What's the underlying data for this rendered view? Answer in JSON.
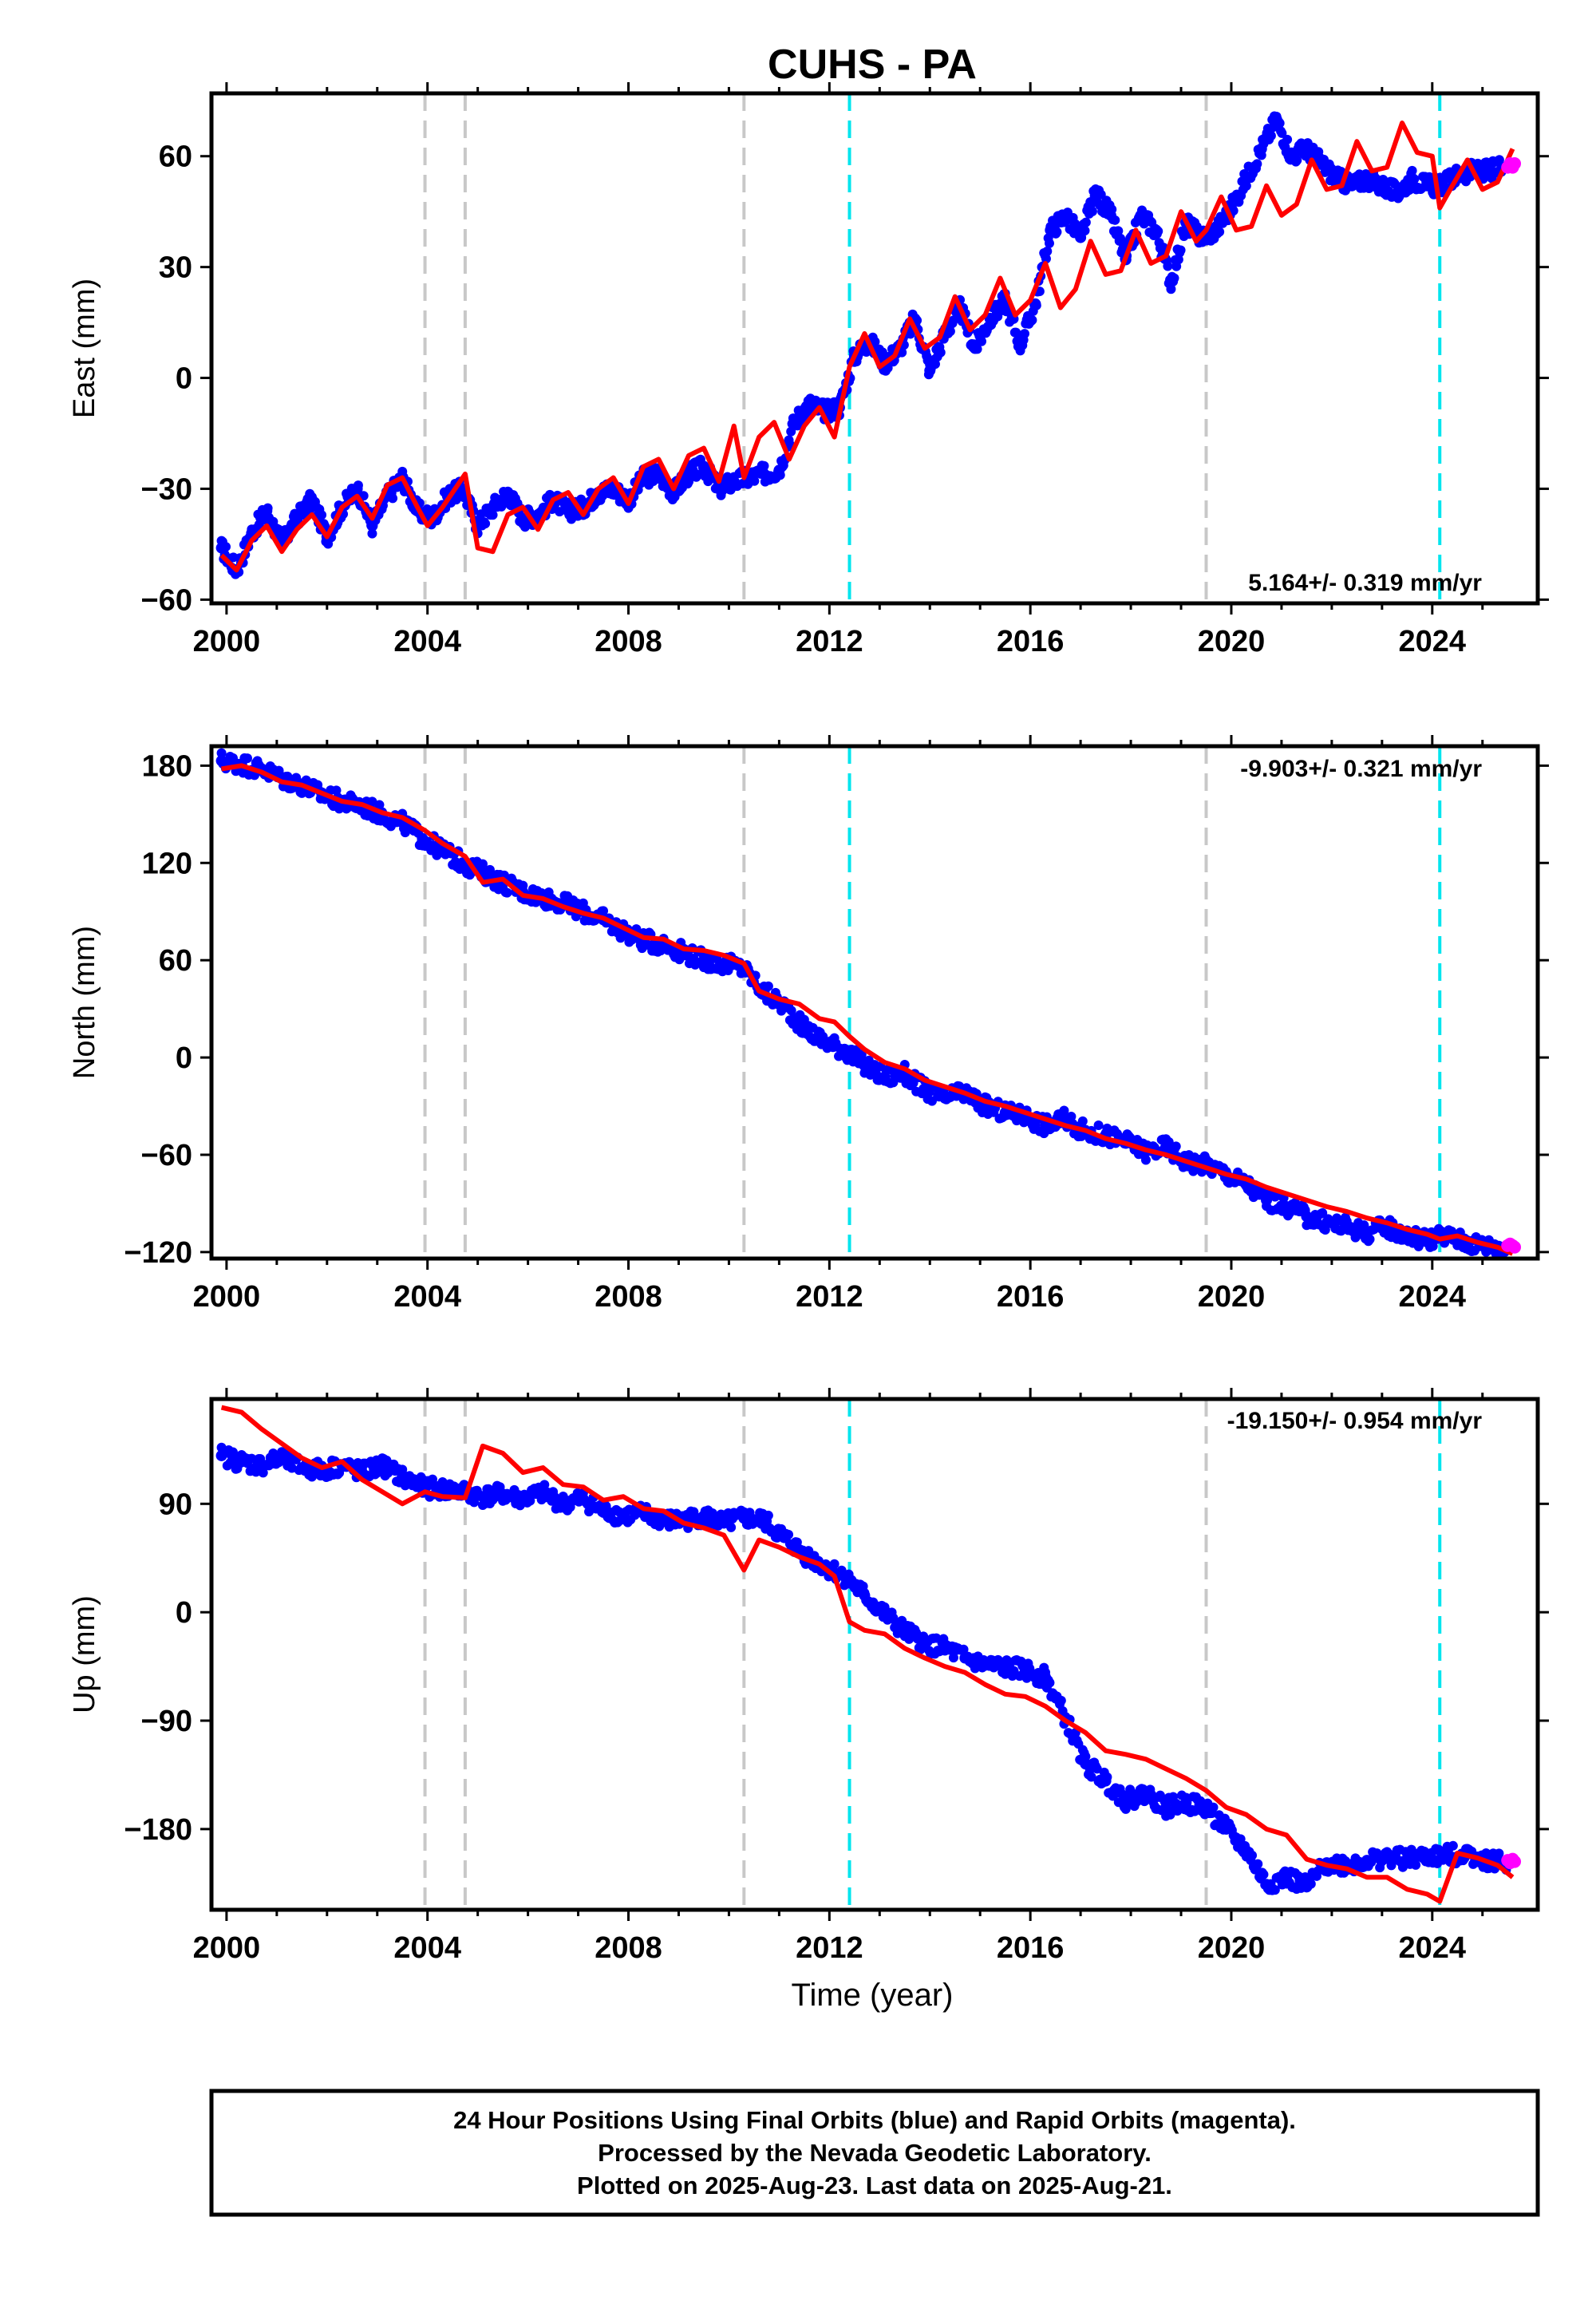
{
  "title": "CUHS - PA",
  "xlabel": "Time (year)",
  "footnote": [
    "24 Hour Positions Using Final Orbits (blue) and Rapid Orbits (magenta).",
    "Processed by the Nevada Geodetic Laboratory.",
    "Plotted on 2025-Aug-23. Last data on 2025-Aug-21."
  ],
  "colors": {
    "final": "#0000ff",
    "rapid": "#ff00ff",
    "model": "#ff0000",
    "equipment_change": "#c8c8c8",
    "event": "#00e5ee"
  },
  "chart_data": [
    {
      "type": "scatter",
      "component": "East",
      "ylabel": "East (mm)",
      "rate": "5.164+/- 0.319 mm/yr",
      "xlim": [
        1999.7,
        2026.1
      ],
      "ylim": [
        -61,
        77
      ],
      "xticks": [
        2000,
        2004,
        2008,
        2012,
        2016,
        2020,
        2024
      ],
      "yticks": [
        -60,
        -30,
        0,
        30,
        60
      ],
      "vlines_gray": [
        2003.95,
        2004.75,
        2010.3,
        2019.5
      ],
      "vlines_cyan": [
        2012.4,
        2024.15
      ],
      "series": [
        {
          "name": "Final Orbits",
          "x": [
            1999.9,
            2000.2,
            2000.5,
            2000.8,
            2001.1,
            2001.4,
            2001.7,
            2002.0,
            2002.3,
            2002.6,
            2002.9,
            2003.2,
            2003.5,
            2003.8,
            2004.1,
            2004.4,
            2004.7,
            2005.0,
            2005.3,
            2005.6,
            2005.9,
            2006.2,
            2006.5,
            2006.8,
            2007.1,
            2007.4,
            2007.7,
            2008.0,
            2008.3,
            2008.6,
            2008.9,
            2009.2,
            2009.5,
            2009.8,
            2010.1,
            2010.4,
            2010.7,
            2011.0,
            2011.3,
            2011.6,
            2011.9,
            2012.2,
            2012.5,
            2012.8,
            2013.1,
            2013.4,
            2013.7,
            2014.0,
            2014.3,
            2014.6,
            2014.9,
            2015.2,
            2015.5,
            2015.8,
            2016.1,
            2016.4,
            2016.7,
            2017.0,
            2017.3,
            2017.6,
            2017.9,
            2018.2,
            2018.5,
            2018.8,
            2019.1,
            2019.4,
            2019.7,
            2020.0,
            2020.3,
            2020.6,
            2020.9,
            2021.2,
            2021.5,
            2021.8,
            2022.1,
            2022.4,
            2022.7,
            2023.0,
            2023.3,
            2023.6,
            2023.9,
            2024.2,
            2024.5,
            2024.8,
            2025.1,
            2025.4
          ],
          "values": [
            -46,
            -52,
            -42,
            -36,
            -45,
            -38,
            -33,
            -43,
            -35,
            -30,
            -40,
            -32,
            -27,
            -36,
            -38,
            -32,
            -30,
            -40,
            -35,
            -31,
            -38,
            -37,
            -33,
            -36,
            -35,
            -31,
            -30,
            -33,
            -27,
            -26,
            -31,
            -26,
            -24,
            -30,
            -28,
            -27,
            -26,
            -25,
            -12,
            -7,
            -9,
            -8,
            6,
            10,
            4,
            8,
            16,
            2,
            12,
            19,
            8,
            16,
            21,
            9,
            20,
            40,
            44,
            38,
            50,
            44,
            32,
            44,
            40,
            26,
            42,
            38,
            40,
            46,
            54,
            62,
            70,
            60,
            62,
            58,
            54,
            52,
            54,
            52,
            50,
            54,
            52,
            52,
            55,
            56,
            56,
            57
          ]
        },
        {
          "name": "Model",
          "x": [
            1999.9,
            2000.2,
            2000.5,
            2000.8,
            2001.1,
            2001.4,
            2001.7,
            2002.0,
            2002.3,
            2002.6,
            2002.9,
            2003.2,
            2003.5,
            2003.8,
            2004.0,
            2004.3,
            2004.5,
            2004.75,
            2005.0,
            2005.3,
            2005.6,
            2005.9,
            2006.2,
            2006.5,
            2006.8,
            2007.1,
            2007.4,
            2007.7,
            2008.0,
            2008.3,
            2008.6,
            2008.9,
            2009.2,
            2009.5,
            2009.8,
            2010.1,
            2010.3,
            2010.6,
            2010.9,
            2011.2,
            2011.5,
            2011.8,
            2012.1,
            2012.4,
            2012.7,
            2013.0,
            2013.3,
            2013.6,
            2013.9,
            2014.2,
            2014.5,
            2014.8,
            2015.1,
            2015.4,
            2015.7,
            2016.0,
            2016.3,
            2016.6,
            2016.9,
            2017.2,
            2017.5,
            2017.8,
            2018.1,
            2018.4,
            2018.7,
            2019.0,
            2019.3,
            2019.5,
            2019.8,
            2020.1,
            2020.4,
            2020.7,
            2021.0,
            2021.3,
            2021.6,
            2021.9,
            2022.2,
            2022.5,
            2022.8,
            2023.1,
            2023.4,
            2023.7,
            2024.0,
            2024.15,
            2024.4,
            2024.7,
            2025.0,
            2025.3,
            2025.6
          ],
          "values": [
            -48,
            -52,
            -44,
            -40,
            -47,
            -41,
            -37,
            -43,
            -35,
            -32,
            -38,
            -29,
            -27,
            -35,
            -40,
            -35,
            -31,
            -26,
            -46,
            -47,
            -37,
            -35,
            -41,
            -33,
            -31,
            -37,
            -30,
            -27,
            -34,
            -24,
            -22,
            -30,
            -21,
            -19,
            -28,
            -13,
            -27,
            -16,
            -12,
            -22,
            -13,
            -8,
            -16,
            3,
            12,
            3,
            6,
            16,
            8,
            11,
            22,
            13,
            17,
            27,
            17,
            21,
            31,
            19,
            24,
            37,
            28,
            29,
            40,
            31,
            33,
            45,
            37,
            40,
            49,
            40,
            41,
            52,
            44,
            47,
            59,
            51,
            52,
            64,
            56,
            57,
            69,
            61,
            60,
            46,
            52,
            59,
            51,
            53,
            62
          ]
        },
        {
          "name": "Rapid Orbits",
          "x": [
            2025.5,
            2025.55,
            2025.6,
            2025.64
          ],
          "values": [
            57,
            58,
            57,
            58
          ]
        }
      ]
    },
    {
      "type": "scatter",
      "component": "North",
      "ylabel": "North (mm)",
      "rate": "-9.903+/- 0.321 mm/yr",
      "xlim": [
        1999.7,
        2026.1
      ],
      "ylim": [
        -124,
        192
      ],
      "xticks": [
        2000,
        2004,
        2008,
        2012,
        2016,
        2020,
        2024
      ],
      "yticks": [
        -120,
        -60,
        0,
        60,
        120,
        180
      ],
      "vlines_gray": [
        2003.95,
        2004.75,
        2010.3,
        2019.5
      ],
      "vlines_cyan": [
        2012.4,
        2024.15
      ],
      "series": [
        {
          "name": "Final Orbits",
          "x": [
            1999.9,
            2000.3,
            2000.7,
            2001.1,
            2001.5,
            2001.9,
            2002.3,
            2002.7,
            2003.1,
            2003.5,
            2003.9,
            2004.3,
            2004.7,
            2005.1,
            2005.5,
            2005.9,
            2006.3,
            2006.7,
            2007.1,
            2007.5,
            2007.9,
            2008.3,
            2008.7,
            2009.1,
            2009.5,
            2009.9,
            2010.3,
            2010.7,
            2011.1,
            2011.5,
            2011.9,
            2012.3,
            2012.7,
            2013.1,
            2013.5,
            2013.9,
            2014.3,
            2014.7,
            2015.1,
            2015.5,
            2015.9,
            2016.3,
            2016.7,
            2017.1,
            2017.5,
            2017.9,
            2018.3,
            2018.7,
            2019.1,
            2019.5,
            2019.9,
            2020.3,
            2020.7,
            2021.1,
            2021.5,
            2021.9,
            2022.3,
            2022.7,
            2023.1,
            2023.5,
            2023.9,
            2024.3,
            2024.7,
            2025.1,
            2025.5
          ],
          "values": [
            183,
            181,
            178,
            172,
            168,
            162,
            158,
            155,
            150,
            145,
            135,
            128,
            120,
            114,
            108,
            102,
            99,
            95,
            90,
            85,
            78,
            72,
            70,
            65,
            60,
            58,
            55,
            40,
            32,
            18,
            10,
            5,
            -5,
            -12,
            -10,
            -20,
            -25,
            -22,
            -30,
            -34,
            -36,
            -42,
            -38,
            -46,
            -48,
            -52,
            -58,
            -55,
            -64,
            -66,
            -72,
            -78,
            -88,
            -92,
            -98,
            -102,
            -104,
            -108,
            -104,
            -110,
            -112,
            -110,
            -114,
            -116,
            -118
          ]
        },
        {
          "name": "Model",
          "x": [
            1999.9,
            2000.3,
            2000.7,
            2001.1,
            2001.5,
            2001.9,
            2002.3,
            2002.7,
            2003.1,
            2003.5,
            2003.95,
            2004.3,
            2004.75,
            2005.1,
            2005.5,
            2005.9,
            2006.3,
            2006.7,
            2007.1,
            2007.5,
            2007.9,
            2008.3,
            2008.7,
            2009.1,
            2009.5,
            2009.9,
            2010.3,
            2010.6,
            2011.0,
            2011.4,
            2011.8,
            2012.1,
            2012.4,
            2012.7,
            2013.1,
            2013.5,
            2013.9,
            2014.3,
            2014.7,
            2015.1,
            2015.5,
            2015.9,
            2016.3,
            2016.7,
            2017.1,
            2017.5,
            2017.9,
            2018.3,
            2018.7,
            2019.1,
            2019.5,
            2019.9,
            2020.3,
            2020.7,
            2021.1,
            2021.5,
            2021.9,
            2022.3,
            2022.7,
            2023.1,
            2023.5,
            2023.9,
            2024.15,
            2024.5,
            2024.9,
            2025.3,
            2025.6
          ],
          "values": [
            178,
            180,
            176,
            170,
            168,
            163,
            158,
            156,
            151,
            148,
            140,
            132,
            124,
            108,
            110,
            100,
            98,
            93,
            89,
            86,
            80,
            74,
            73,
            67,
            66,
            63,
            58,
            41,
            36,
            33,
            24,
            22,
            13,
            5,
            -3,
            -7,
            -14,
            -18,
            -22,
            -27,
            -30,
            -34,
            -38,
            -42,
            -45,
            -50,
            -53,
            -57,
            -60,
            -64,
            -68,
            -72,
            -75,
            -80,
            -84,
            -88,
            -92,
            -95,
            -99,
            -102,
            -106,
            -109,
            -112,
            -110,
            -114,
            -117,
            -121
          ]
        },
        {
          "name": "Rapid Orbits",
          "x": [
            2025.5,
            2025.55,
            2025.6,
            2025.64
          ],
          "values": [
            -116,
            -115,
            -116,
            -117
          ]
        }
      ]
    },
    {
      "type": "scatter",
      "component": "Up",
      "ylabel": "Up (mm)",
      "rate": "-19.150+/- 0.954 mm/yr",
      "xlim": [
        1999.7,
        2026.1
      ],
      "ylim": [
        -247,
        177
      ],
      "xticks": [
        2000,
        2004,
        2008,
        2012,
        2016,
        2020,
        2024
      ],
      "yticks": [
        -180,
        -90,
        0,
        90
      ],
      "vlines_gray": [
        2003.95,
        2004.75,
        2010.3,
        2019.5
      ],
      "vlines_cyan": [
        2012.4,
        2024.15
      ],
      "series": [
        {
          "name": "Final Orbits",
          "x": [
            1999.9,
            2000.3,
            2000.7,
            2001.1,
            2001.5,
            2001.9,
            2002.3,
            2002.7,
            2003.1,
            2003.5,
            2003.9,
            2004.3,
            2004.7,
            2005.1,
            2005.5,
            2005.9,
            2006.3,
            2006.7,
            2007.1,
            2007.5,
            2007.9,
            2008.3,
            2008.7,
            2009.1,
            2009.5,
            2009.9,
            2010.3,
            2010.7,
            2011.1,
            2011.5,
            2011.9,
            2012.3,
            2012.7,
            2013.1,
            2013.5,
            2013.9,
            2014.3,
            2014.7,
            2015.1,
            2015.5,
            2015.9,
            2016.3,
            2016.7,
            2017.1,
            2017.5,
            2017.9,
            2018.3,
            2018.7,
            2019.1,
            2019.5,
            2019.9,
            2020.3,
            2020.7,
            2021.1,
            2021.5,
            2021.9,
            2022.3,
            2022.7,
            2023.1,
            2023.5,
            2023.9,
            2024.3,
            2024.7,
            2025.1,
            2025.5
          ],
          "values": [
            130,
            125,
            122,
            128,
            120,
            118,
            122,
            116,
            122,
            112,
            104,
            102,
            100,
            96,
            98,
            94,
            99,
            90,
            94,
            84,
            80,
            82,
            76,
            76,
            80,
            74,
            78,
            76,
            62,
            48,
            38,
            30,
            14,
            -2,
            -16,
            -26,
            -30,
            -38,
            -44,
            -46,
            -48,
            -54,
            -88,
            -126,
            -140,
            -156,
            -150,
            -162,
            -158,
            -162,
            -180,
            -198,
            -226,
            -220,
            -228,
            -208,
            -210,
            -206,
            -204,
            -205,
            -203,
            -202,
            -200,
            -206,
            -208
          ]
        },
        {
          "name": "Model",
          "x": [
            1999.9,
            2000.3,
            2000.7,
            2001.1,
            2001.5,
            2001.9,
            2002.3,
            2002.7,
            2003.1,
            2003.5,
            2003.95,
            2004.3,
            2004.75,
            2005.1,
            2005.5,
            2005.9,
            2006.3,
            2006.7,
            2007.1,
            2007.5,
            2007.9,
            2008.3,
            2008.7,
            2009.1,
            2009.5,
            2009.9,
            2010.3,
            2010.6,
            2011.0,
            2011.4,
            2011.8,
            2012.1,
            2012.4,
            2012.7,
            2013.1,
            2013.5,
            2013.9,
            2014.3,
            2014.7,
            2015.1,
            2015.5,
            2015.9,
            2016.3,
            2016.7,
            2017.1,
            2017.5,
            2017.9,
            2018.3,
            2018.7,
            2019.1,
            2019.5,
            2019.9,
            2020.3,
            2020.7,
            2021.1,
            2021.5,
            2021.9,
            2022.3,
            2022.7,
            2023.1,
            2023.5,
            2023.9,
            2024.15,
            2024.5,
            2024.9,
            2025.3,
            2025.6
          ],
          "values": [
            170,
            166,
            152,
            140,
            128,
            120,
            125,
            110,
            100,
            90,
            100,
            96,
            95,
            138,
            132,
            116,
            120,
            106,
            104,
            93,
            96,
            86,
            84,
            74,
            70,
            64,
            35,
            60,
            54,
            46,
            40,
            30,
            -8,
            -15,
            -18,
            -30,
            -38,
            -45,
            -50,
            -60,
            -68,
            -70,
            -78,
            -90,
            -100,
            -115,
            -118,
            -122,
            -130,
            -138,
            -148,
            -162,
            -168,
            -180,
            -185,
            -205,
            -210,
            -213,
            -220,
            -220,
            -230,
            -234,
            -240,
            -200,
            -204,
            -210,
            -220
          ]
        },
        {
          "name": "Rapid Orbits",
          "x": [
            2025.5,
            2025.55,
            2025.6,
            2025.64
          ],
          "values": [
            -206,
            -208,
            -205,
            -207
          ]
        }
      ]
    }
  ]
}
